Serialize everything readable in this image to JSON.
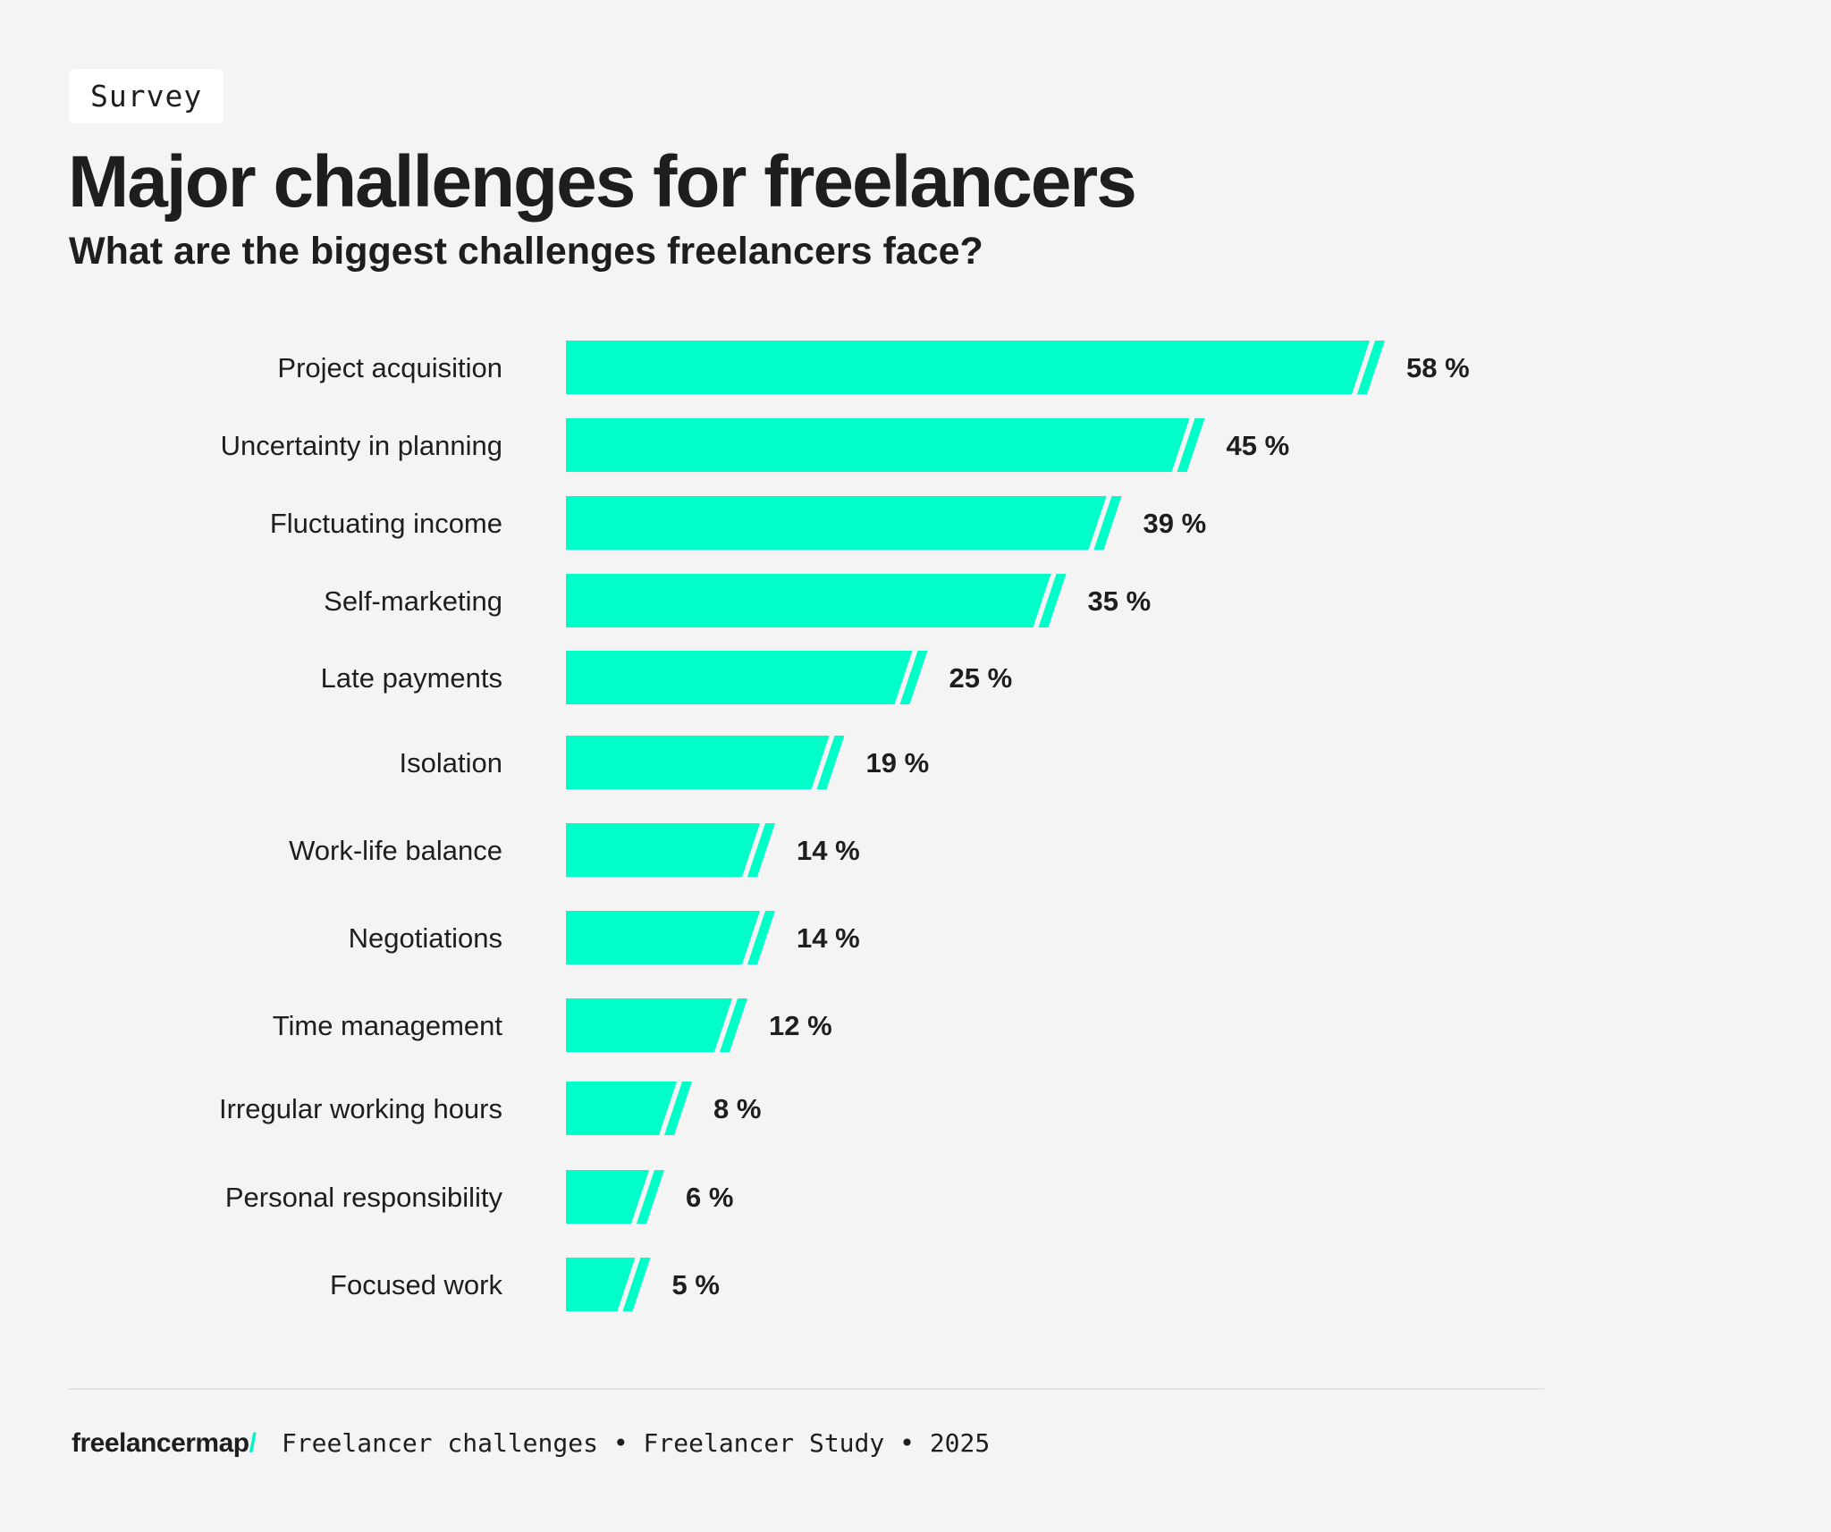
{
  "tag": "Survey",
  "header": {
    "title": "Major challenges for freelancers",
    "subtitle": "What are the biggest challenges freelancers face?"
  },
  "footer": {
    "logo": "freelancermap",
    "logo_slash": "/",
    "caption": "Freelancer challenges • Freelancer Study • 2025"
  },
  "colors": {
    "bar": "#00ffc8",
    "text": "#1e1e1e",
    "background": "#f4f4f4"
  },
  "chart_data": {
    "type": "bar",
    "orientation": "horizontal",
    "title": "Major challenges for freelancers",
    "subtitle": "What are the biggest challenges freelancers face?",
    "unit": "%",
    "categories": [
      "Project acquisition",
      "Uncertainty in planning",
      "Fluctuating income",
      "Self-marketing",
      "Late payments",
      "Isolation",
      "Work-life balance",
      "Negotiations",
      "Time management",
      "Irregular working hours",
      "Personal responsibility",
      "Focused work"
    ],
    "values": [
      58,
      45,
      39,
      35,
      25,
      19,
      14,
      14,
      12,
      8,
      6,
      5
    ],
    "value_labels": [
      "58 %",
      "45 %",
      "39 %",
      "35 %",
      "25 %",
      "19 %",
      "14 %",
      "14 %",
      "12 %",
      "8 %",
      "6 %",
      "5 %"
    ],
    "grid": false,
    "legend": "none"
  }
}
